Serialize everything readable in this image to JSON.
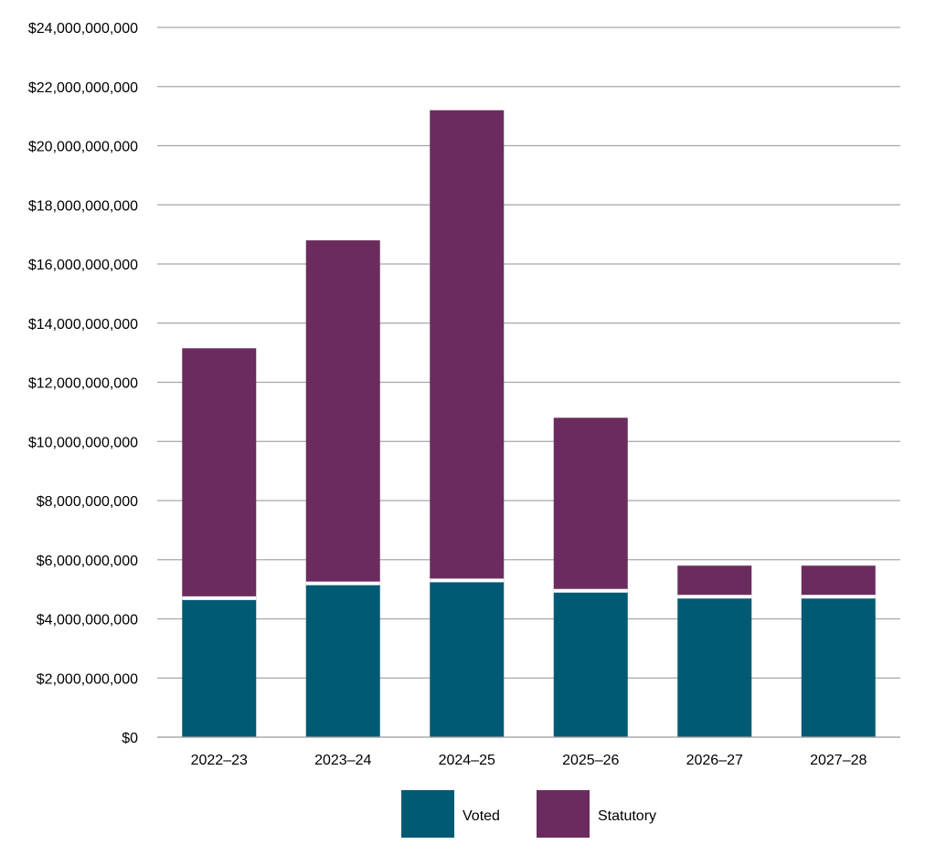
{
  "chart_data": {
    "type": "bar",
    "stacked": true,
    "title": "",
    "xlabel": "",
    "ylabel": "",
    "categories": [
      "2022–23",
      "2023–24",
      "2024–25",
      "2025–26",
      "2026–27",
      "2027–28"
    ],
    "series": [
      {
        "name": "Voted",
        "color": "#005A74",
        "values": [
          4700000000,
          5200000000,
          5300000000,
          4950000000,
          4750000000,
          4750000000
        ]
      },
      {
        "name": "Statutory",
        "color": "#6C2B5E",
        "values": [
          8450000000,
          11600000000,
          15900000000,
          5850000000,
          1050000000,
          1050000000
        ]
      }
    ],
    "ylim": [
      0,
      24000000000
    ],
    "yticks": [
      {
        "value": 0,
        "label": "$0"
      },
      {
        "value": 2000000000,
        "label": "$2,000,000,000"
      },
      {
        "value": 4000000000,
        "label": "$4,000,000,000"
      },
      {
        "value": 6000000000,
        "label": "$6,000,000,000"
      },
      {
        "value": 8000000000,
        "label": "$8,000,000,000"
      },
      {
        "value": 10000000000,
        "label": "$10,000,000,000"
      },
      {
        "value": 12000000000,
        "label": "$12,000,000,000"
      },
      {
        "value": 14000000000,
        "label": "$14,000,000,000"
      },
      {
        "value": 16000000000,
        "label": "$16,000,000,000"
      },
      {
        "value": 18000000000,
        "label": "$18,000,000,000"
      },
      {
        "value": 20000000000,
        "label": "$20,000,000,000"
      },
      {
        "value": 22000000000,
        "label": "$22,000,000,000"
      },
      {
        "value": 24000000000,
        "label": "$24,000,000,000"
      }
    ],
    "grid": true,
    "legend_position": "bottom-center",
    "legend": [
      "Voted",
      "Statutory"
    ]
  },
  "colors": {
    "grid": "#A6A6A6",
    "separator": "#FFFFFF"
  }
}
